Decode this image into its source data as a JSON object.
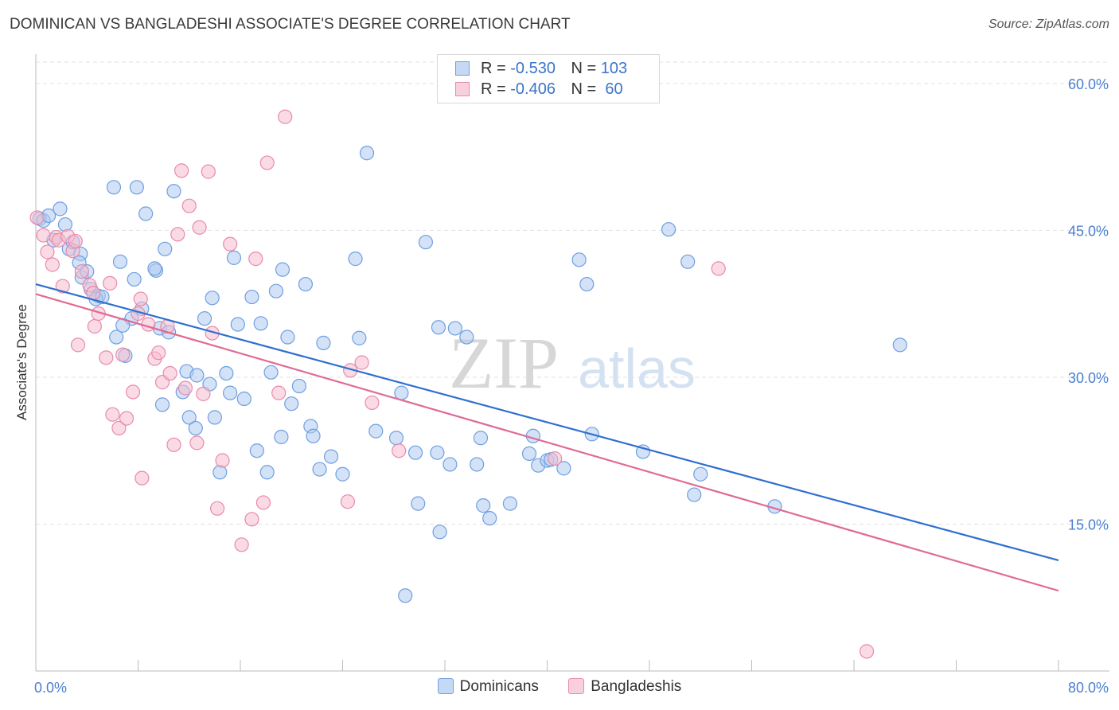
{
  "header": {
    "title": "DOMINICAN VS BANGLADESHI ASSOCIATE'S DEGREE CORRELATION CHART",
    "source": "Source: ZipAtlas.com"
  },
  "watermark": {
    "zip": "ZIP",
    "atlas": "atlas"
  },
  "legend_top": {
    "rows": [
      {
        "r_label": "R =",
        "r_value": "-0.530",
        "n_label": "N =",
        "n_value": "103"
      },
      {
        "r_label": "R =",
        "r_value": "-0.406",
        "n_label": "N =",
        "n_value": " 60"
      }
    ]
  },
  "legend_bottom": {
    "dominicans": "Dominicans",
    "bangladeshis": "Bangladeshis"
  },
  "colors": {
    "blue_fill": "#aecbf0",
    "blue_stroke": "#6f9fe0",
    "blue_line": "#2f6fd0",
    "pink_fill": "#f6bdd0",
    "pink_stroke": "#e98aaa",
    "pink_line": "#e06a95",
    "tick_text": "#4a7fd0",
    "grid": "#e2e2e2"
  },
  "chart_data": {
    "type": "scatter",
    "title": "DOMINICAN VS BANGLADESHI ASSOCIATE'S DEGREE CORRELATION CHART",
    "xlabel": "",
    "ylabel": "Associate's Degree",
    "xlim": [
      0,
      80
    ],
    "ylim": [
      0,
      63
    ],
    "x_tick_labels": [
      "0.0%",
      "80.0%"
    ],
    "y_ticks": [
      15,
      30,
      45,
      60
    ],
    "y_tick_labels": [
      "15.0%",
      "30.0%",
      "45.0%",
      "60.0%"
    ],
    "series": [
      {
        "name": "Dominicans",
        "r": -0.53,
        "n": 103,
        "trend": {
          "x": [
            0,
            80
          ],
          "y": [
            39.5,
            11.3
          ]
        },
        "points": [
          [
            0.3,
            46.2
          ],
          [
            0.6,
            46
          ],
          [
            1,
            46.5
          ],
          [
            1.4,
            44
          ],
          [
            1.9,
            47.2
          ],
          [
            2.3,
            45.6
          ],
          [
            2.6,
            43.1
          ],
          [
            2.9,
            43.8
          ],
          [
            3.5,
            42.6
          ],
          [
            3.4,
            41.7
          ],
          [
            3.6,
            40.2
          ],
          [
            4,
            40.8
          ],
          [
            4.3,
            39
          ],
          [
            4.9,
            38.3
          ],
          [
            4.7,
            38
          ],
          [
            6.1,
            49.4
          ],
          [
            6.3,
            34.1
          ],
          [
            6.6,
            41.8
          ],
          [
            7,
            32.2
          ],
          [
            7.5,
            36
          ],
          [
            7.7,
            40
          ],
          [
            7.9,
            49.4
          ],
          [
            8.3,
            37
          ],
          [
            8.6,
            46.7
          ],
          [
            9.4,
            40.9
          ],
          [
            9.3,
            41.1
          ],
          [
            9.7,
            35
          ],
          [
            9.9,
            27.2
          ],
          [
            10.1,
            43.1
          ],
          [
            10.4,
            34.6
          ],
          [
            10.8,
            49
          ],
          [
            11.5,
            28.5
          ],
          [
            11.8,
            30.6
          ],
          [
            12,
            25.9
          ],
          [
            12.5,
            24.8
          ],
          [
            12.6,
            30.2
          ],
          [
            13.2,
            36
          ],
          [
            13.6,
            29.3
          ],
          [
            13.8,
            38.1
          ],
          [
            14,
            25.9
          ],
          [
            14.4,
            20.3
          ],
          [
            14.9,
            30.4
          ],
          [
            15.2,
            28.4
          ],
          [
            15.5,
            42.2
          ],
          [
            15.8,
            35.4
          ],
          [
            16.3,
            27.8
          ],
          [
            16.9,
            38.2
          ],
          [
            17.3,
            22.5
          ],
          [
            17.6,
            35.5
          ],
          [
            18.1,
            20.3
          ],
          [
            18.4,
            30.5
          ],
          [
            18.8,
            38.8
          ],
          [
            19.2,
            23.9
          ],
          [
            19.3,
            41
          ],
          [
            19.7,
            34.1
          ],
          [
            20,
            27.3
          ],
          [
            20.6,
            29.1
          ],
          [
            21.1,
            39.5
          ],
          [
            21.5,
            25
          ],
          [
            21.7,
            24
          ],
          [
            22.2,
            20.6
          ],
          [
            22.5,
            33.5
          ],
          [
            23.1,
            21.9
          ],
          [
            24,
            20.1
          ],
          [
            25,
            42.1
          ],
          [
            25.3,
            34
          ],
          [
            25.9,
            52.9
          ],
          [
            26.6,
            24.5
          ],
          [
            28.2,
            23.8
          ],
          [
            28.6,
            28.4
          ],
          [
            28.9,
            7.7
          ],
          [
            29.7,
            22.3
          ],
          [
            29.9,
            17.1
          ],
          [
            30.5,
            43.8
          ],
          [
            31.4,
            22.3
          ],
          [
            31.5,
            35.1
          ],
          [
            31.6,
            14.2
          ],
          [
            32.4,
            21.1
          ],
          [
            32.8,
            35
          ],
          [
            33.7,
            34.1
          ],
          [
            34.5,
            21.1
          ],
          [
            34.8,
            23.8
          ],
          [
            35,
            16.9
          ],
          [
            35.5,
            15.6
          ],
          [
            37.1,
            17.1
          ],
          [
            38.6,
            22.2
          ],
          [
            38.9,
            24
          ],
          [
            39.3,
            21
          ],
          [
            40,
            21.5
          ],
          [
            40.3,
            21.6
          ],
          [
            41.3,
            20.7
          ],
          [
            42.5,
            42
          ],
          [
            43.1,
            39.5
          ],
          [
            43.5,
            24.2
          ],
          [
            47.5,
            22.4
          ],
          [
            49.5,
            45.1
          ],
          [
            51,
            41.8
          ],
          [
            51.5,
            18
          ],
          [
            52,
            20.1
          ],
          [
            57.8,
            16.8
          ],
          [
            67.6,
            33.3
          ],
          [
            5.2,
            38.2
          ],
          [
            6.8,
            35.3
          ]
        ]
      },
      {
        "name": "Bangladeshis",
        "r": -0.406,
        "n": 60,
        "trend": {
          "x": [
            0,
            80
          ],
          "y": [
            38.5,
            8.2
          ]
        },
        "points": [
          [
            0.1,
            46.3
          ],
          [
            0.6,
            44.5
          ],
          [
            0.9,
            42.8
          ],
          [
            1.3,
            41.5
          ],
          [
            1.6,
            44.3
          ],
          [
            1.8,
            44
          ],
          [
            2.1,
            39.3
          ],
          [
            2.5,
            44.4
          ],
          [
            2.9,
            42.9
          ],
          [
            3.1,
            43.9
          ],
          [
            3.6,
            40.8
          ],
          [
            4.2,
            39.4
          ],
          [
            4.5,
            38.6
          ],
          [
            4.6,
            35.2
          ],
          [
            4.9,
            36.5
          ],
          [
            5.5,
            32
          ],
          [
            5.8,
            39.6
          ],
          [
            6,
            26.2
          ],
          [
            6.5,
            24.8
          ],
          [
            6.8,
            32.3
          ],
          [
            7.1,
            25.8
          ],
          [
            7.6,
            28.5
          ],
          [
            8,
            36.5
          ],
          [
            8.2,
            38
          ],
          [
            8.3,
            19.7
          ],
          [
            8.8,
            35.4
          ],
          [
            9.3,
            31.9
          ],
          [
            9.6,
            32.5
          ],
          [
            9.9,
            29.5
          ],
          [
            10.3,
            35.2
          ],
          [
            10.5,
            30.4
          ],
          [
            10.8,
            23.1
          ],
          [
            11.1,
            44.6
          ],
          [
            11.4,
            51.1
          ],
          [
            11.7,
            28.9
          ],
          [
            12,
            47.5
          ],
          [
            12.6,
            23.3
          ],
          [
            12.8,
            45.3
          ],
          [
            13.1,
            28.3
          ],
          [
            13.5,
            51
          ],
          [
            13.8,
            34.5
          ],
          [
            14.2,
            16.6
          ],
          [
            14.6,
            21.5
          ],
          [
            15.2,
            43.6
          ],
          [
            16.1,
            12.9
          ],
          [
            16.9,
            15.5
          ],
          [
            17.2,
            42.1
          ],
          [
            17.8,
            17.2
          ],
          [
            18.1,
            51.9
          ],
          [
            19,
            28.4
          ],
          [
            19.5,
            56.6
          ],
          [
            24.4,
            17.3
          ],
          [
            24.6,
            30.7
          ],
          [
            25.5,
            31.5
          ],
          [
            26.3,
            27.4
          ],
          [
            28.4,
            22.5
          ],
          [
            40.6,
            21.7
          ],
          [
            53.4,
            41.1
          ],
          [
            65,
            2
          ],
          [
            3.3,
            33.3
          ]
        ]
      }
    ]
  }
}
